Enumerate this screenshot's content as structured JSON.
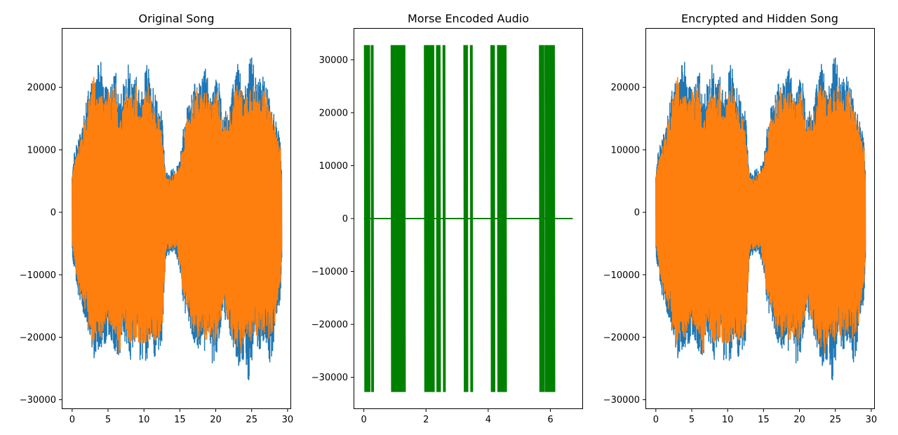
{
  "chart_data": [
    {
      "type": "line",
      "title": "Original Song",
      "xlabel": "",
      "ylabel": "",
      "xlim": [
        -1.45,
        30.5
      ],
      "ylim": [
        -31500,
        29500
      ],
      "xticks": [
        0,
        5,
        10,
        15,
        20,
        25,
        30
      ],
      "yticks": [
        -30000,
        -20000,
        -10000,
        0,
        10000,
        20000
      ],
      "x_range": [
        0,
        29.2
      ],
      "grid": false,
      "series": [
        {
          "color": "#1f77b4",
          "envelope_x": [
            0,
            0.5,
            1,
            1.5,
            2,
            2.5,
            3,
            3.5,
            4,
            4.5,
            5,
            5.5,
            6,
            6.5,
            7,
            7.5,
            8,
            8.5,
            9,
            9.5,
            10,
            10.5,
            11,
            11.5,
            12,
            12.5,
            13,
            13.5,
            14,
            14.5,
            15,
            15.5,
            16,
            16.5,
            17,
            17.5,
            18,
            18.5,
            19,
            19.5,
            20,
            20.5,
            21,
            21.5,
            22,
            22.5,
            23,
            23.5,
            24,
            24.5,
            25,
            25.5,
            26,
            26.5,
            27,
            27.5,
            28,
            28.5,
            29,
            29.2
          ],
          "upper": [
            7000,
            11000,
            13000,
            15500,
            18000,
            21500,
            21000,
            23000,
            25200,
            20000,
            22000,
            20000,
            24500,
            17500,
            20000,
            22500,
            24500,
            20000,
            22500,
            18500,
            22000,
            24500,
            20500,
            19500,
            17000,
            16000,
            7000,
            6500,
            7000,
            7500,
            8500,
            13500,
            17000,
            18500,
            21000,
            20500,
            21000,
            23500,
            21500,
            18500,
            22000,
            21000,
            15000,
            17000,
            17500,
            21000,
            24000,
            22500,
            20000,
            22500,
            26500,
            22000,
            21000,
            22500,
            20500,
            18500,
            16500,
            15000,
            12000,
            6500
          ],
          "lower": [
            -7500,
            -11000,
            -15000,
            -16000,
            -19000,
            -21500,
            -23500,
            -22000,
            -22500,
            -21500,
            -20000,
            -20500,
            -23000,
            -23500,
            -20000,
            -21000,
            -24500,
            -22000,
            -23000,
            -24000,
            -23500,
            -24500,
            -21500,
            -23500,
            -22500,
            -21000,
            -7500,
            -7000,
            -6500,
            -7000,
            -9500,
            -15500,
            -17000,
            -19000,
            -21000,
            -22000,
            -21000,
            -22500,
            -21000,
            -24500,
            -23500,
            -20500,
            -15500,
            -18500,
            -20000,
            -22000,
            -24500,
            -26000,
            -23000,
            -28500,
            -24000,
            -22000,
            -22500,
            -21500,
            -21000,
            -24500,
            -21500,
            -17500,
            -13500,
            -6500
          ]
        },
        {
          "color": "#ff7f0e",
          "envelope_x": [
            0,
            0.5,
            1,
            1.5,
            2,
            2.5,
            3,
            3.5,
            4,
            4.5,
            5,
            5.5,
            6,
            6.5,
            7,
            7.5,
            8,
            8.5,
            9,
            9.5,
            10,
            10.5,
            11,
            11.5,
            12,
            12.5,
            13,
            13.5,
            14,
            14.5,
            15,
            15.5,
            16,
            16.5,
            17,
            17.5,
            18,
            18.5,
            19,
            19.5,
            20,
            20.5,
            21,
            21.5,
            22,
            22.5,
            23,
            23.5,
            24,
            24.5,
            25,
            25.5,
            26,
            26.5,
            27,
            27.5,
            28,
            28.5,
            29,
            29.2
          ],
          "upper": [
            6000,
            9000,
            11000,
            13500,
            16000,
            19500,
            21800,
            18500,
            19500,
            17500,
            19500,
            19000,
            21500,
            14500,
            16500,
            19000,
            21000,
            17500,
            21800,
            16500,
            20000,
            21000,
            18000,
            17000,
            15500,
            13500,
            6000,
            5500,
            6000,
            6500,
            7500,
            12000,
            15000,
            17500,
            19500,
            20000,
            18500,
            20000,
            19000,
            17000,
            19500,
            20000,
            13000,
            15500,
            16500,
            19000,
            20500,
            20000,
            18500,
            20000,
            21500,
            20000,
            19500,
            20500,
            18500,
            16500,
            15000,
            13000,
            10500,
            5500
          ],
          "lower": [
            -6000,
            -9500,
            -13000,
            -14000,
            -17000,
            -20000,
            -21800,
            -20000,
            -20500,
            -19000,
            -18000,
            -18500,
            -21000,
            -23500,
            -18500,
            -19000,
            -22000,
            -20000,
            -21000,
            -21500,
            -21000,
            -22000,
            -19500,
            -21000,
            -20000,
            -19500,
            -6500,
            -6000,
            -5500,
            -6000,
            -8500,
            -14000,
            -15500,
            -17500,
            -19500,
            -20500,
            -19500,
            -21000,
            -19500,
            -21500,
            -21500,
            -18500,
            -14000,
            -17000,
            -18500,
            -20500,
            -22000,
            -23500,
            -20500,
            -20500,
            -21000,
            -20000,
            -20500,
            -19500,
            -19000,
            -21000,
            -19500,
            -15500,
            -11500,
            -5500
          ]
        }
      ]
    },
    {
      "type": "line",
      "title": "Morse Encoded Audio",
      "xlabel": "",
      "ylabel": "",
      "xlim": [
        -0.33,
        7.05
      ],
      "ylim": [
        -36000,
        36000
      ],
      "xticks": [
        0,
        2,
        4,
        6
      ],
      "yticks": [
        -30000,
        -20000,
        -10000,
        0,
        10000,
        20000,
        30000
      ],
      "x_range": [
        0,
        6.72
      ],
      "grid": false,
      "series": [
        {
          "color": "#008000",
          "amplitude": 32767,
          "baseline": 0,
          "tone_segments": [
            [
              0.02,
              0.19
            ],
            [
              0.24,
              0.31
            ],
            [
              0.88,
              1.26
            ],
            [
              1.29,
              1.34
            ],
            [
              1.95,
              2.26
            ],
            [
              2.34,
              2.47
            ],
            [
              2.55,
              2.62
            ],
            [
              3.22,
              3.34
            ],
            [
              3.43,
              3.5
            ],
            [
              4.09,
              4.22
            ],
            [
              4.3,
              4.59
            ],
            [
              5.65,
              5.79
            ],
            [
              5.83,
              6.14
            ]
          ]
        }
      ]
    },
    {
      "type": "line",
      "title": "Encrypted and Hidden Song",
      "xlabel": "",
      "ylabel": "",
      "xlim": [
        -1.45,
        30.5
      ],
      "ylim": [
        -31500,
        29500
      ],
      "xticks": [
        0,
        5,
        10,
        15,
        20,
        25,
        30
      ],
      "yticks": [
        -30000,
        -20000,
        -10000,
        0,
        10000,
        20000
      ],
      "x_range": [
        0,
        29.2
      ],
      "grid": false,
      "series": [
        {
          "color": "#1f77b4",
          "envelope_x": [
            0,
            0.5,
            1,
            1.5,
            2,
            2.5,
            3,
            3.5,
            4,
            4.5,
            5,
            5.5,
            6,
            6.5,
            7,
            7.5,
            8,
            8.5,
            9,
            9.5,
            10,
            10.5,
            11,
            11.5,
            12,
            12.5,
            13,
            13.5,
            14,
            14.5,
            15,
            15.5,
            16,
            16.5,
            17,
            17.5,
            18,
            18.5,
            19,
            19.5,
            20,
            20.5,
            21,
            21.5,
            22,
            22.5,
            23,
            23.5,
            24,
            24.5,
            25,
            25.5,
            26,
            26.5,
            27,
            27.5,
            28,
            28.5,
            29,
            29.2
          ],
          "upper": [
            7000,
            11000,
            13000,
            15500,
            18000,
            21500,
            21000,
            23000,
            25200,
            20000,
            22000,
            20000,
            24500,
            17500,
            20000,
            22500,
            24500,
            20000,
            22500,
            18500,
            22000,
            24500,
            20500,
            19500,
            17000,
            16000,
            7000,
            6500,
            7000,
            7500,
            8500,
            13500,
            17000,
            18500,
            21000,
            20500,
            21000,
            23500,
            21500,
            18500,
            22000,
            21000,
            15000,
            17000,
            17500,
            21000,
            24000,
            22500,
            20000,
            22500,
            26500,
            22000,
            21000,
            22500,
            20500,
            18500,
            16500,
            15000,
            12000,
            6500
          ],
          "lower": [
            -7500,
            -11000,
            -15000,
            -16000,
            -19000,
            -21500,
            -23500,
            -22000,
            -22500,
            -21500,
            -20000,
            -20500,
            -23000,
            -23500,
            -20000,
            -21000,
            -24500,
            -22000,
            -23000,
            -24000,
            -23500,
            -24500,
            -21500,
            -23500,
            -22500,
            -21000,
            -7500,
            -7000,
            -6500,
            -7000,
            -9500,
            -15500,
            -17000,
            -19000,
            -21000,
            -22000,
            -21000,
            -22500,
            -21000,
            -24500,
            -23500,
            -20500,
            -15500,
            -18500,
            -20000,
            -22000,
            -24500,
            -26000,
            -23000,
            -28500,
            -24000,
            -22000,
            -22500,
            -21500,
            -21000,
            -24500,
            -21500,
            -17500,
            -13500,
            -6500
          ]
        },
        {
          "color": "#ff7f0e",
          "envelope_x": [
            0,
            0.5,
            1,
            1.5,
            2,
            2.5,
            3,
            3.5,
            4,
            4.5,
            5,
            5.5,
            6,
            6.5,
            7,
            7.5,
            8,
            8.5,
            9,
            9.5,
            10,
            10.5,
            11,
            11.5,
            12,
            12.5,
            13,
            13.5,
            14,
            14.5,
            15,
            15.5,
            16,
            16.5,
            17,
            17.5,
            18,
            18.5,
            19,
            19.5,
            20,
            20.5,
            21,
            21.5,
            22,
            22.5,
            23,
            23.5,
            24,
            24.5,
            25,
            25.5,
            26,
            26.5,
            27,
            27.5,
            28,
            28.5,
            29,
            29.2
          ],
          "upper": [
            6000,
            9000,
            11000,
            13500,
            16000,
            19500,
            21800,
            18500,
            19500,
            17500,
            19500,
            19000,
            21500,
            14500,
            16500,
            19000,
            21000,
            17500,
            21800,
            16500,
            20000,
            21000,
            18000,
            17000,
            15500,
            13500,
            6000,
            5500,
            6000,
            6500,
            7500,
            12000,
            15000,
            17500,
            19500,
            20000,
            18500,
            20000,
            19000,
            17000,
            19500,
            20000,
            13000,
            15500,
            16500,
            19000,
            20500,
            20000,
            18500,
            20000,
            21500,
            20000,
            19500,
            20500,
            18500,
            16500,
            15000,
            13000,
            10500,
            5500
          ],
          "lower": [
            -6000,
            -9500,
            -13000,
            -14000,
            -17000,
            -20000,
            -21800,
            -20000,
            -20500,
            -19000,
            -18000,
            -18500,
            -21000,
            -23500,
            -18500,
            -19000,
            -22000,
            -20000,
            -21000,
            -21500,
            -21000,
            -22000,
            -19500,
            -21000,
            -20000,
            -19500,
            -6500,
            -6000,
            -5500,
            -6000,
            -8500,
            -14000,
            -15500,
            -17500,
            -19500,
            -20500,
            -19500,
            -21000,
            -19500,
            -21500,
            -21500,
            -18500,
            -14000,
            -17000,
            -18500,
            -20500,
            -22000,
            -23500,
            -20500,
            -20500,
            -21000,
            -20000,
            -20500,
            -19500,
            -19000,
            -21000,
            -19500,
            -15500,
            -11500,
            -5500
          ]
        }
      ]
    }
  ]
}
